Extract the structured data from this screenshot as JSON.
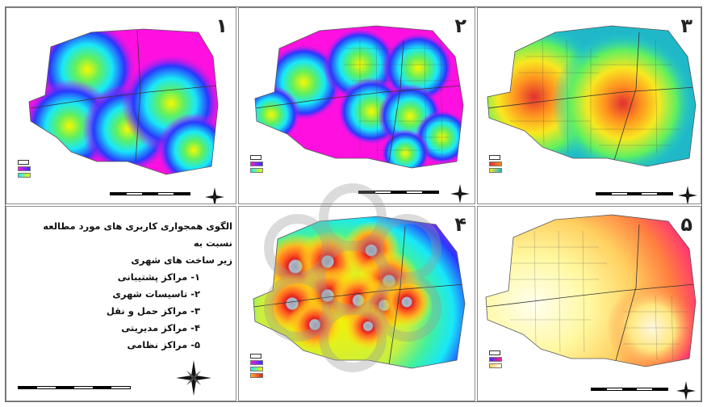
{
  "panels": [
    {
      "id": "1",
      "label": "۱"
    },
    {
      "id": "2",
      "label": "۲"
    },
    {
      "id": "3",
      "label": "۳"
    },
    {
      "id": "4",
      "label": "۴"
    },
    {
      "id": "5",
      "label": "۵"
    }
  ],
  "text_panel": {
    "heading_line1": "الگوی همجواری کاربری های مورد مطالعه نسبت به",
    "heading_line2": "زیر ساخت های شهری",
    "items": [
      "۱- مراکز پشتیبانی",
      "۲- تاسیسات شهری",
      "۳- مراکز حمل و نقل",
      "۴- مراکز مدیریتی",
      "۵- مراکز نظامی"
    ]
  },
  "colors": {
    "magenta": "#ff10e0",
    "blue": "#2838ff",
    "cyan": "#18e8f8",
    "green": "#40f070",
    "yellow": "#f8f800",
    "orange": "#ffa020",
    "red": "#ff2020",
    "site_gray": "#9aa6b8"
  },
  "icons": {
    "north_arrow": "compass-rose-icon"
  }
}
